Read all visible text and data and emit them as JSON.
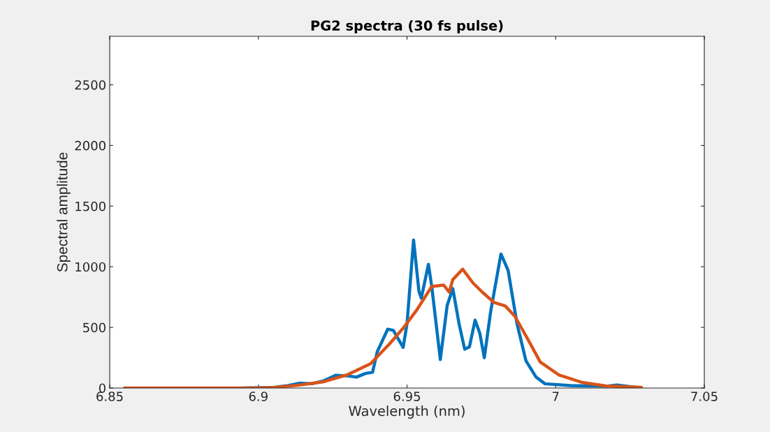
{
  "chart_data": {
    "type": "line",
    "title": "PG2 spectra (30 fs pulse)",
    "xlabel": "Wavelength (nm)",
    "ylabel": "Spectral amplitude",
    "xlim": [
      6.85,
      7.05
    ],
    "xticks": [
      6.85,
      6.9,
      6.95,
      7,
      7.05
    ],
    "ylim": [
      0,
      2900
    ],
    "yticks": [
      0,
      500,
      1000,
      1500,
      2000,
      2500
    ],
    "grid": false,
    "legend": false,
    "marker": "none",
    "line_style": "solid",
    "series": [
      {
        "color": "#0072bd",
        "x": [
          6.895,
          6.905,
          6.91,
          6.914,
          6.918,
          6.922,
          6.926,
          6.93,
          6.933,
          6.936,
          6.9384,
          6.94,
          6.9435,
          6.9454,
          6.9487,
          6.95,
          6.9522,
          6.954,
          6.9548,
          6.9572,
          6.9583,
          6.9612,
          6.9635,
          6.9654,
          6.9675,
          6.9694,
          6.971,
          6.9729,
          6.9745,
          6.976,
          6.9781,
          6.9816,
          6.984,
          6.987,
          6.99,
          6.9934,
          6.9964,
          7.005,
          7.0169,
          7.0206,
          7.0288
        ],
        "values": [
          0,
          5,
          20,
          40,
          35,
          60,
          105,
          100,
          90,
          120,
          130,
          300,
          485,
          475,
          335,
          530,
          1220,
          800,
          740,
          1020,
          840,
          235,
          680,
          820,
          530,
          320,
          340,
          560,
          450,
          250,
          625,
          1105,
          970,
          530,
          225,
          90,
          35,
          20,
          15,
          25,
          0
        ]
      },
      {
        "color": "#d95319",
        "x": [
          6.855,
          6.88,
          6.9,
          6.906,
          6.914,
          6.922,
          6.93,
          6.9377,
          6.944,
          6.9487,
          6.9534,
          6.9583,
          6.9623,
          6.9642,
          6.9654,
          6.9687,
          6.9722,
          6.9753,
          6.9793,
          6.983,
          6.9863,
          6.99,
          6.9948,
          7.001,
          7.0089,
          7.0169,
          7.0288
        ],
        "values": [
          0,
          0,
          0,
          6,
          25,
          52,
          110,
          200,
          361,
          493,
          648,
          837,
          849,
          791,
          894,
          980,
          866,
          791,
          705,
          677,
          591,
          430,
          215,
          109,
          46,
          17,
          6
        ]
      }
    ]
  }
}
